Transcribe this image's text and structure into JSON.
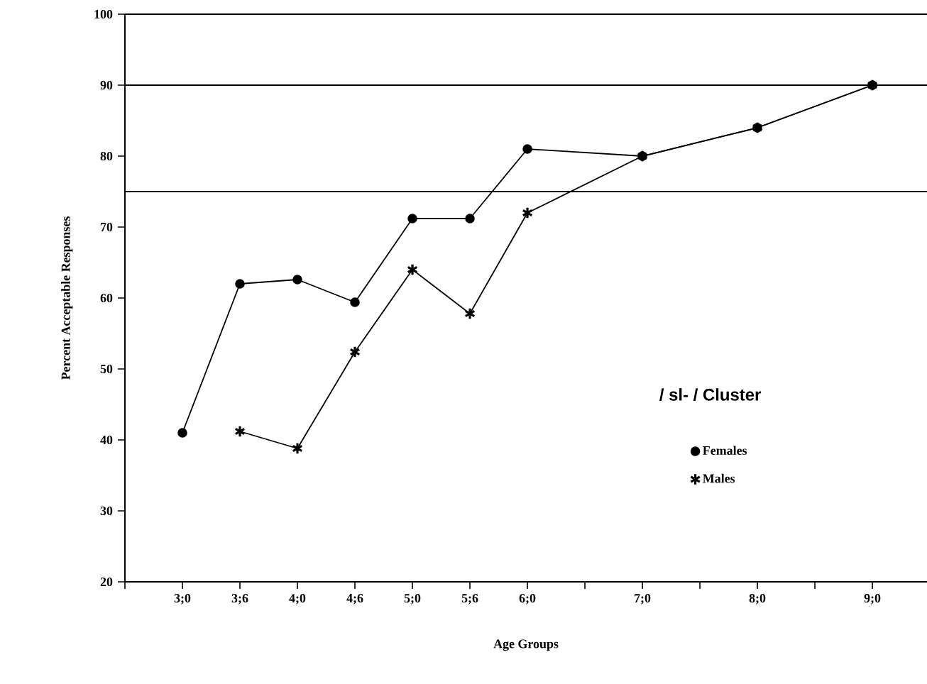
{
  "chart_data": {
    "type": "line",
    "xlabel": "Age Groups",
    "ylabel": "Percent Acceptable Responses",
    "legend_title": "/ sl- / Cluster",
    "categories": [
      null,
      "3;0",
      "3;6",
      "4;0",
      "4;6",
      "5;0",
      "5;6",
      "6;0",
      null,
      "7;0",
      null,
      "8;0",
      null,
      "9;0"
    ],
    "series": [
      {
        "name": "Females",
        "color": "#000000",
        "marker": "circle",
        "values": [
          null,
          41,
          62,
          62.6,
          59.4,
          71.2,
          71.2,
          81,
          null,
          80,
          null,
          84,
          null,
          90
        ]
      },
      {
        "name": "Males",
        "color": "#000000",
        "marker": "cross",
        "values": [
          null,
          null,
          41.2,
          38.8,
          52.4,
          64,
          57.8,
          72,
          null,
          80,
          null,
          84,
          null,
          90
        ]
      }
    ],
    "ylim": [
      20,
      100
    ],
    "yticks": [
      20,
      30,
      40,
      50,
      60,
      70,
      80,
      90,
      100
    ],
    "ref_lines": [
      {
        "axis": "y",
        "value": 90
      },
      {
        "axis": "y",
        "value": 75
      }
    ],
    "legend": "right",
    "grid": false,
    "line_style": "solid"
  }
}
